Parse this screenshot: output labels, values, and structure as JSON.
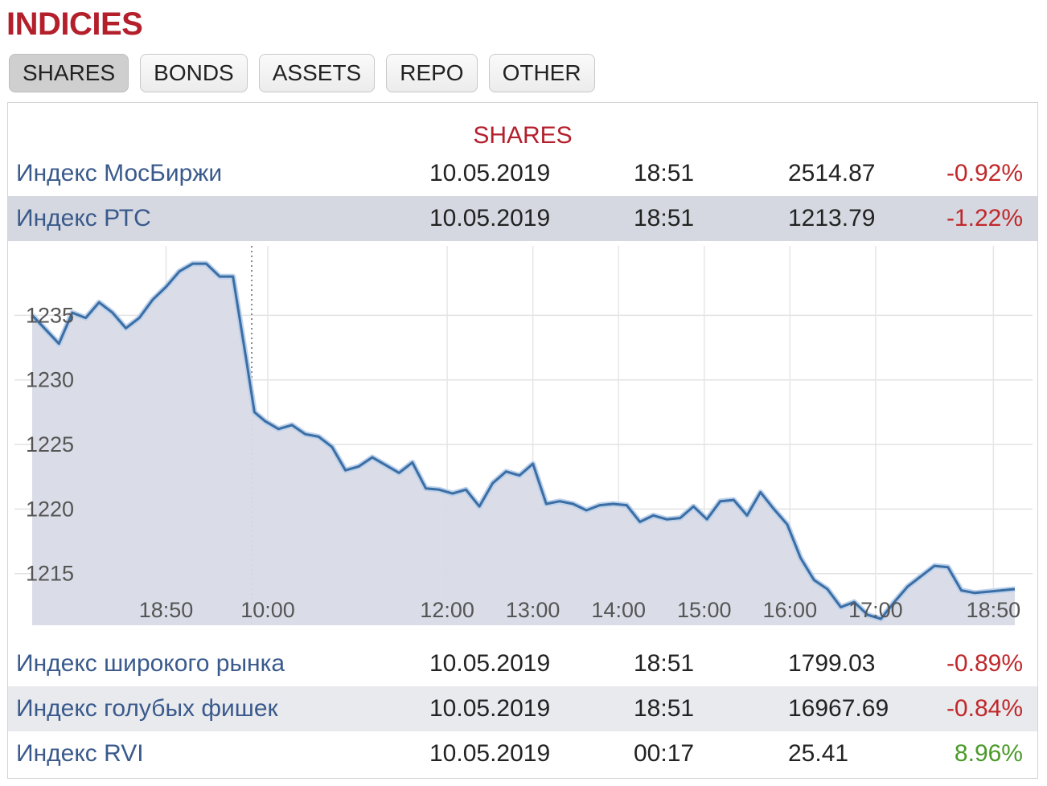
{
  "header": {
    "title": "INDICIES"
  },
  "tabs": [
    {
      "label": "SHARES"
    },
    {
      "label": "BONDS"
    },
    {
      "label": "ASSETS"
    },
    {
      "label": "REPO"
    },
    {
      "label": "OTHER"
    }
  ],
  "section": {
    "title": "SHARES"
  },
  "rows": [
    {
      "name": "Индекс МосБиржи",
      "date": "10.05.2019",
      "time": "18:51",
      "value": "2514.87",
      "change": "-0.92%"
    },
    {
      "name": "Индекс РТС",
      "date": "10.05.2019",
      "time": "18:51",
      "value": "1213.79",
      "change": "-1.22%"
    },
    {
      "name": "Индекс широкого рынка",
      "date": "10.05.2019",
      "time": "18:51",
      "value": "1799.03",
      "change": "-0.89%"
    },
    {
      "name": "Индекс голубых фишек",
      "date": "10.05.2019",
      "time": "18:51",
      "value": "16967.69",
      "change": "-0.84%"
    },
    {
      "name": "Индекс RVI",
      "date": "10.05.2019",
      "time": "00:17",
      "value": "25.41",
      "change": "8.96%"
    }
  ],
  "colors": {
    "negative": "#c0282a",
    "positive": "#4a9a2a",
    "line": "#3a6ea5",
    "area": "#d8dbe6",
    "accent": "#b41f2c"
  },
  "chart_data": {
    "type": "area",
    "ylim": [
      1211,
      1240
    ],
    "yticks": [
      1215,
      1220,
      1225,
      1230,
      1235
    ],
    "xticks": [
      {
        "label": "18:50",
        "x": 5
      },
      {
        "label": "10:00",
        "x": 8.8
      },
      {
        "label": "12:00",
        "x": 15.5
      },
      {
        "label": "13:00",
        "x": 18.7
      },
      {
        "label": "14:00",
        "x": 21.9
      },
      {
        "label": "15:00",
        "x": 25.1
      },
      {
        "label": "16:00",
        "x": 28.3
      },
      {
        "label": "17:00",
        "x": 31.5
      },
      {
        "label": "18:50",
        "x": 35.9
      }
    ],
    "session_break_x": 8.2,
    "series": [
      {
        "x": [
          0,
          1,
          1.5,
          2,
          2.5,
          3,
          3.5,
          4,
          4.5,
          5,
          5.5,
          6,
          6.5,
          7,
          7.5,
          8,
          8.3,
          8.7,
          9.2,
          9.7,
          10.2,
          10.7,
          11.2,
          11.7,
          12.2,
          12.7,
          13.2,
          13.7,
          14.2,
          14.7,
          15.2,
          15.7,
          16.2,
          16.7,
          17.2,
          17.7,
          18.2,
          18.7,
          19.2,
          19.7,
          20.2,
          20.7,
          21.2,
          21.7,
          22.2,
          22.7,
          23.2,
          23.7,
          24.2,
          24.7,
          25.2,
          25.7,
          26.2,
          26.7,
          27.2,
          27.7,
          28.2,
          28.7,
          29.2,
          29.7,
          30.2,
          30.7,
          31.2,
          31.7,
          32.2,
          32.7,
          33.2,
          33.7,
          34.2,
          34.7,
          35.2,
          35.7,
          36.2,
          36.7
        ],
        "y": [
          1235,
          1232.8,
          1235.2,
          1234.8,
          1236,
          1235.2,
          1234,
          1234.8,
          1236.2,
          1237.2,
          1238.4,
          1239,
          1239,
          1238,
          1238,
          1231.5,
          1227.5,
          1226.8,
          1226.2,
          1226.5,
          1225.8,
          1225.6,
          1224.8,
          1223,
          1223.3,
          1224,
          1223.4,
          1222.8,
          1223.6,
          1221.6,
          1221.5,
          1221.2,
          1221.5,
          1220.2,
          1222,
          1222.9,
          1222.6,
          1223.5,
          1220.4,
          1220.6,
          1220.4,
          1219.9,
          1220.3,
          1220.4,
          1220.3,
          1219,
          1219.5,
          1219.2,
          1219.3,
          1220.2,
          1219.2,
          1220.6,
          1220.7,
          1219.5,
          1221.3,
          1220,
          1218.8,
          1216.2,
          1214.5,
          1213.8,
          1212.4,
          1212.8,
          1211.8,
          1211.5,
          1212.8,
          1214,
          1214.8,
          1215.6,
          1215.5,
          1213.7,
          1213.5,
          1213.6,
          1213.7,
          1213.8
        ]
      }
    ]
  }
}
